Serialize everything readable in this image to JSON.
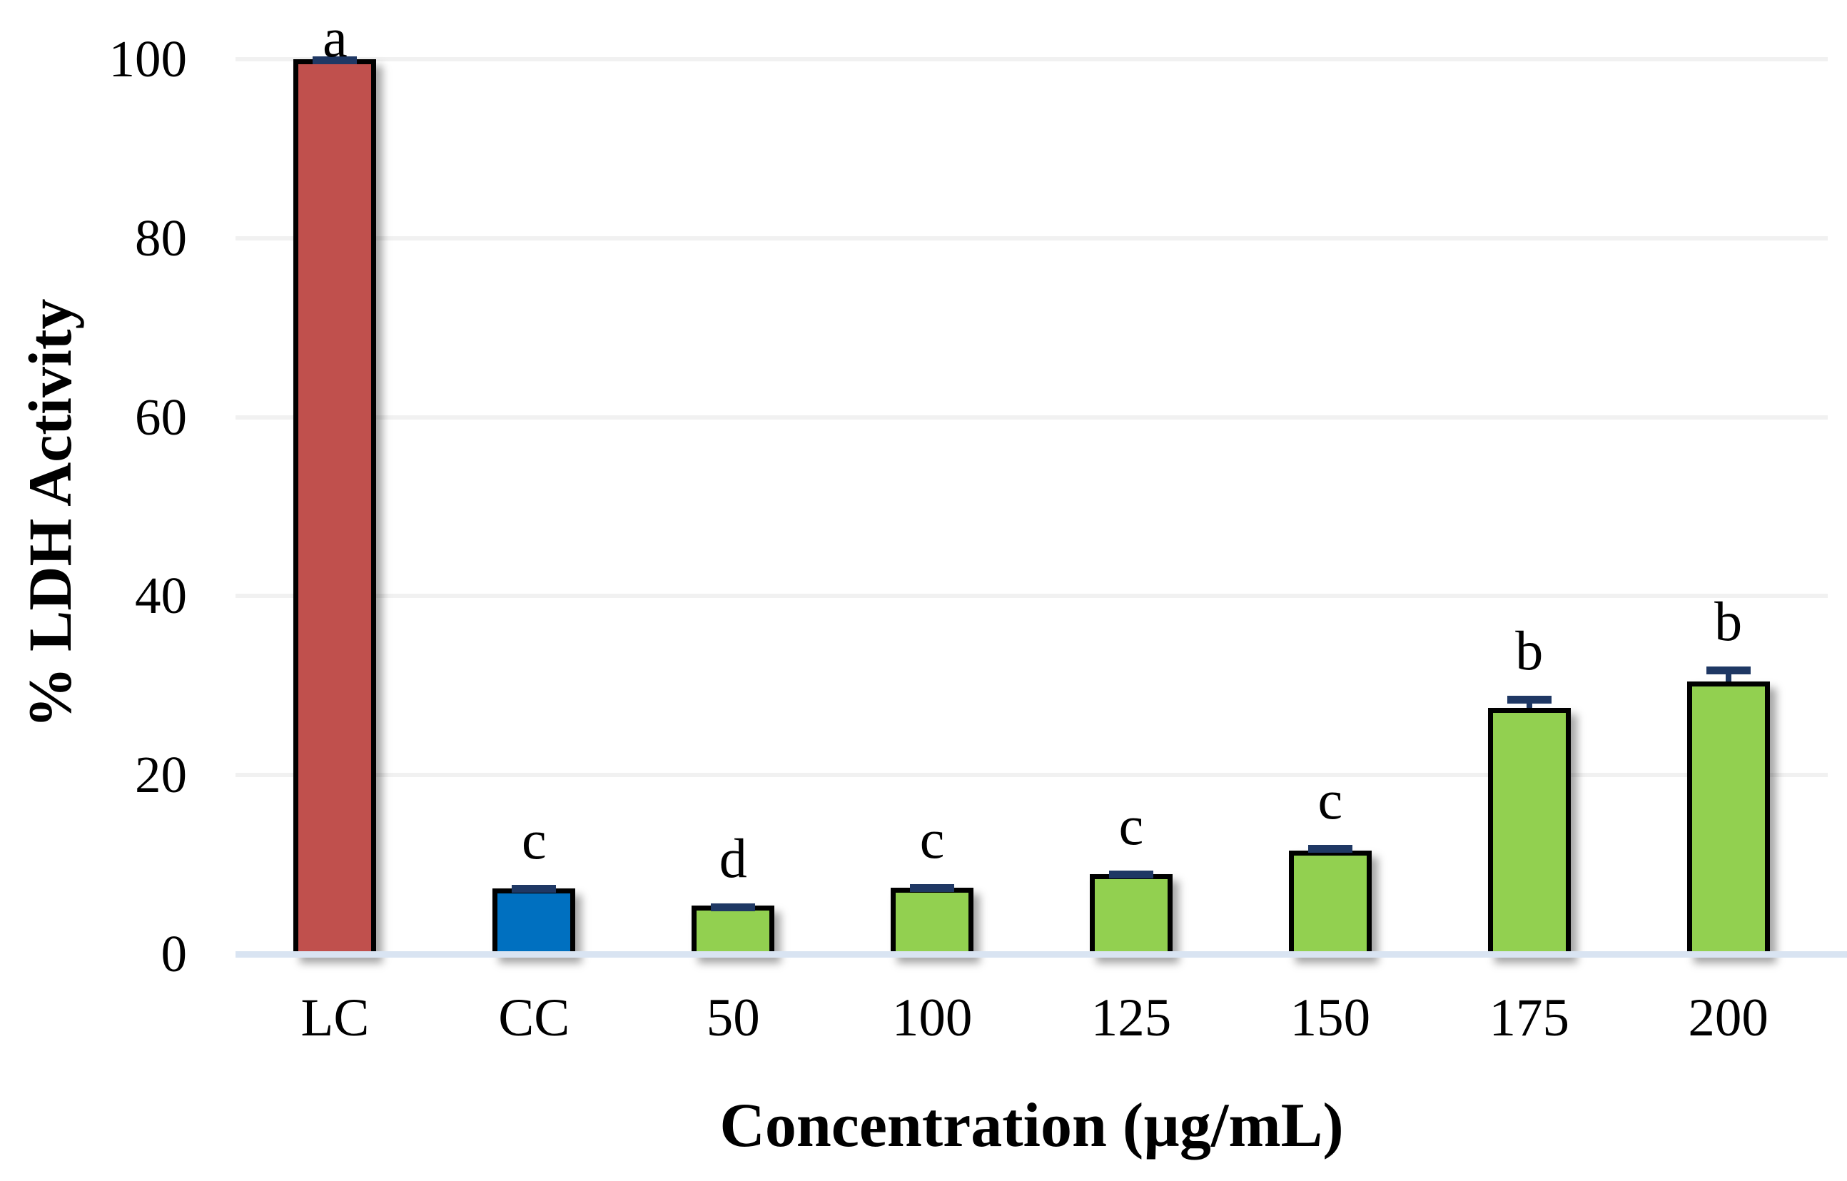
{
  "chart_data": {
    "type": "bar",
    "title": "",
    "xlabel": "Concentration (µg/mL)",
    "ylabel": "% LDH Activity",
    "categories": [
      "LC",
      "CC",
      "50",
      "100",
      "125",
      "150",
      "175",
      "200"
    ],
    "values": [
      100,
      7.3,
      5.4,
      7.4,
      8.9,
      11.6,
      27.5,
      30.5
    ],
    "errors": [
      0.3,
      0.4,
      0.3,
      0.4,
      0.4,
      0.6,
      1.4,
      1.6
    ],
    "sig_letters": [
      "a",
      "c",
      "d",
      "c",
      "c",
      "c",
      "b",
      "b"
    ],
    "bar_colors": [
      "#C0504D",
      "#0070C0",
      "#92D050",
      "#92D050",
      "#92D050",
      "#92D050",
      "#92D050",
      "#92D050"
    ],
    "y_ticks": [
      0,
      20,
      40,
      60,
      80,
      100
    ],
    "ylim": [
      0,
      100
    ],
    "grid": true,
    "legend": "none",
    "colors": {
      "bar_border": "#000000",
      "error_bar": "#1F3864",
      "gridline": "#F1F1F1",
      "baseline": "#D9E4F2",
      "text": "#000000"
    }
  }
}
